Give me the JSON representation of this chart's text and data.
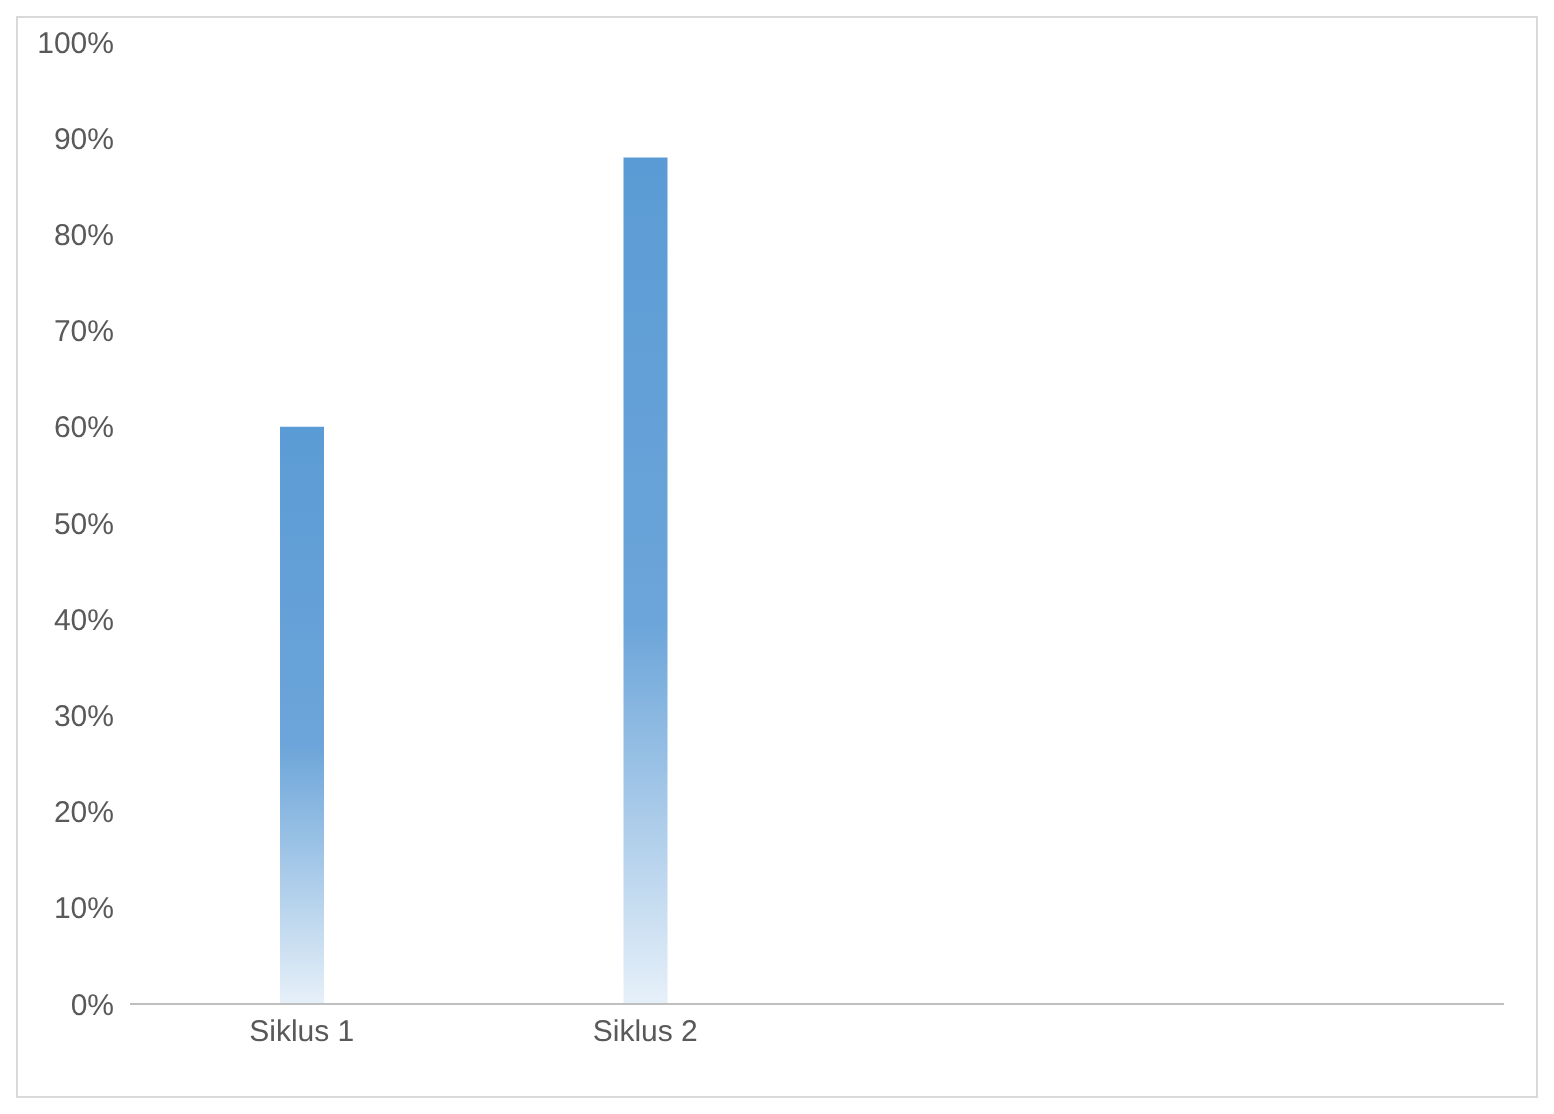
{
  "chart_data": {
    "type": "bar",
    "categories": [
      "Siklus 1",
      "Siklus 2",
      null,
      null
    ],
    "values": [
      60,
      88,
      null,
      null
    ],
    "color": "#5b9bd5",
    "ylim": [
      0,
      100
    ],
    "yticks": [
      {
        "value": 0,
        "label": "0%"
      },
      {
        "value": 10,
        "label": "10%"
      },
      {
        "value": 20,
        "label": "20%"
      },
      {
        "value": 30,
        "label": "30%"
      },
      {
        "value": 40,
        "label": "40%"
      },
      {
        "value": 50,
        "label": "50%"
      },
      {
        "value": 60,
        "label": "60%"
      },
      {
        "value": 70,
        "label": "70%"
      },
      {
        "value": 80,
        "label": "80%"
      },
      {
        "value": 90,
        "label": "90%"
      },
      {
        "value": 100,
        "label": "100%"
      }
    ],
    "grid": false,
    "legend": false
  }
}
